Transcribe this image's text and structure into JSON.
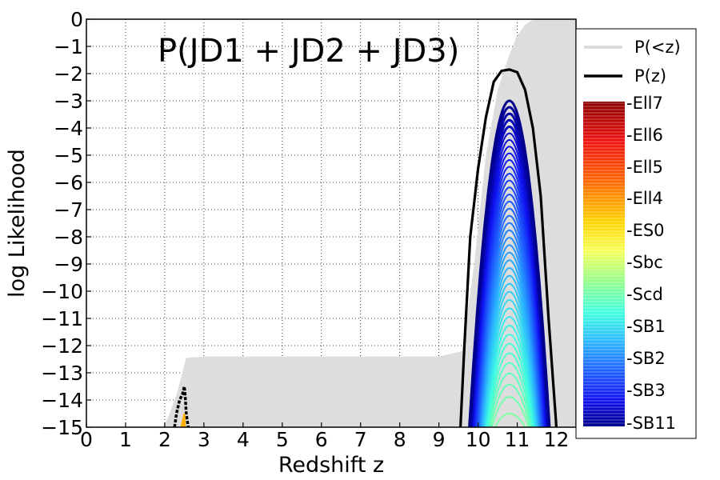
{
  "chart_data": {
    "type": "line",
    "title": "P(JD1 + JD2 + JD3)",
    "xlabel": "Redshift  z",
    "ylabel": "log Likelihood",
    "xlim": [
      0,
      12.5
    ],
    "ylim": [
      -15,
      0
    ],
    "x_ticks": [
      0,
      1,
      2,
      3,
      4,
      5,
      6,
      7,
      8,
      9,
      10,
      11,
      12
    ],
    "y_ticks": [
      0,
      -1,
      -2,
      -3,
      -4,
      -5,
      -6,
      -7,
      -8,
      -9,
      -10,
      -11,
      -12,
      -13,
      -14,
      -15
    ],
    "grid": true,
    "legend_position": "right",
    "series": [
      {
        "name": "P(<z)",
        "color": "#dddddd",
        "x": [
          1.95,
          2.1,
          2.3,
          2.45,
          2.55,
          3.0,
          5.0,
          7.0,
          9.0,
          9.6,
          9.9,
          10.2,
          10.5,
          10.8,
          11.0,
          11.2,
          11.4,
          11.6,
          12.5
        ],
        "y": [
          -15,
          -14.6,
          -13.8,
          -13.0,
          -12.45,
          -12.4,
          -12.4,
          -12.4,
          -12.4,
          -12.2,
          -9.0,
          -5.0,
          -2.6,
          -1.3,
          -0.6,
          -0.2,
          -0.02,
          0,
          0
        ]
      },
      {
        "name": "P(z)",
        "color": "#000000",
        "x": [
          2.25,
          2.3,
          2.38,
          2.45,
          2.5,
          2.52,
          2.55,
          2.6,
          9.55,
          9.65,
          9.8,
          10.0,
          10.2,
          10.4,
          10.6,
          10.8,
          11.0,
          11.2,
          11.4,
          11.6,
          11.8,
          12.0
        ],
        "y": [
          -15,
          -14.5,
          -14.0,
          -13.8,
          -13.5,
          -13.8,
          -14.5,
          -15,
          -15,
          -12.0,
          -8.0,
          -5.5,
          -3.6,
          -2.3,
          -1.9,
          -1.85,
          -1.95,
          -2.6,
          -4.0,
          -6.5,
          -11.0,
          -15
        ]
      }
    ],
    "template_series": {
      "description_source": "colormap legend",
      "labels": [
        "Ell7",
        "Ell6",
        "Ell5",
        "Ell4",
        "ES0",
        "Sbc",
        "Scd",
        "SB1",
        "SB2",
        "SB3",
        "SB11"
      ],
      "peak_z": 10.8,
      "peak_loglike_max": -3.0,
      "peak_loglike_min": -14.5,
      "z_range": [
        9.7,
        12.0
      ]
    },
    "low_z_feature": {
      "x_range": [
        2.3,
        2.6
      ],
      "peak": -14.5,
      "color": "#ffb000"
    }
  }
}
